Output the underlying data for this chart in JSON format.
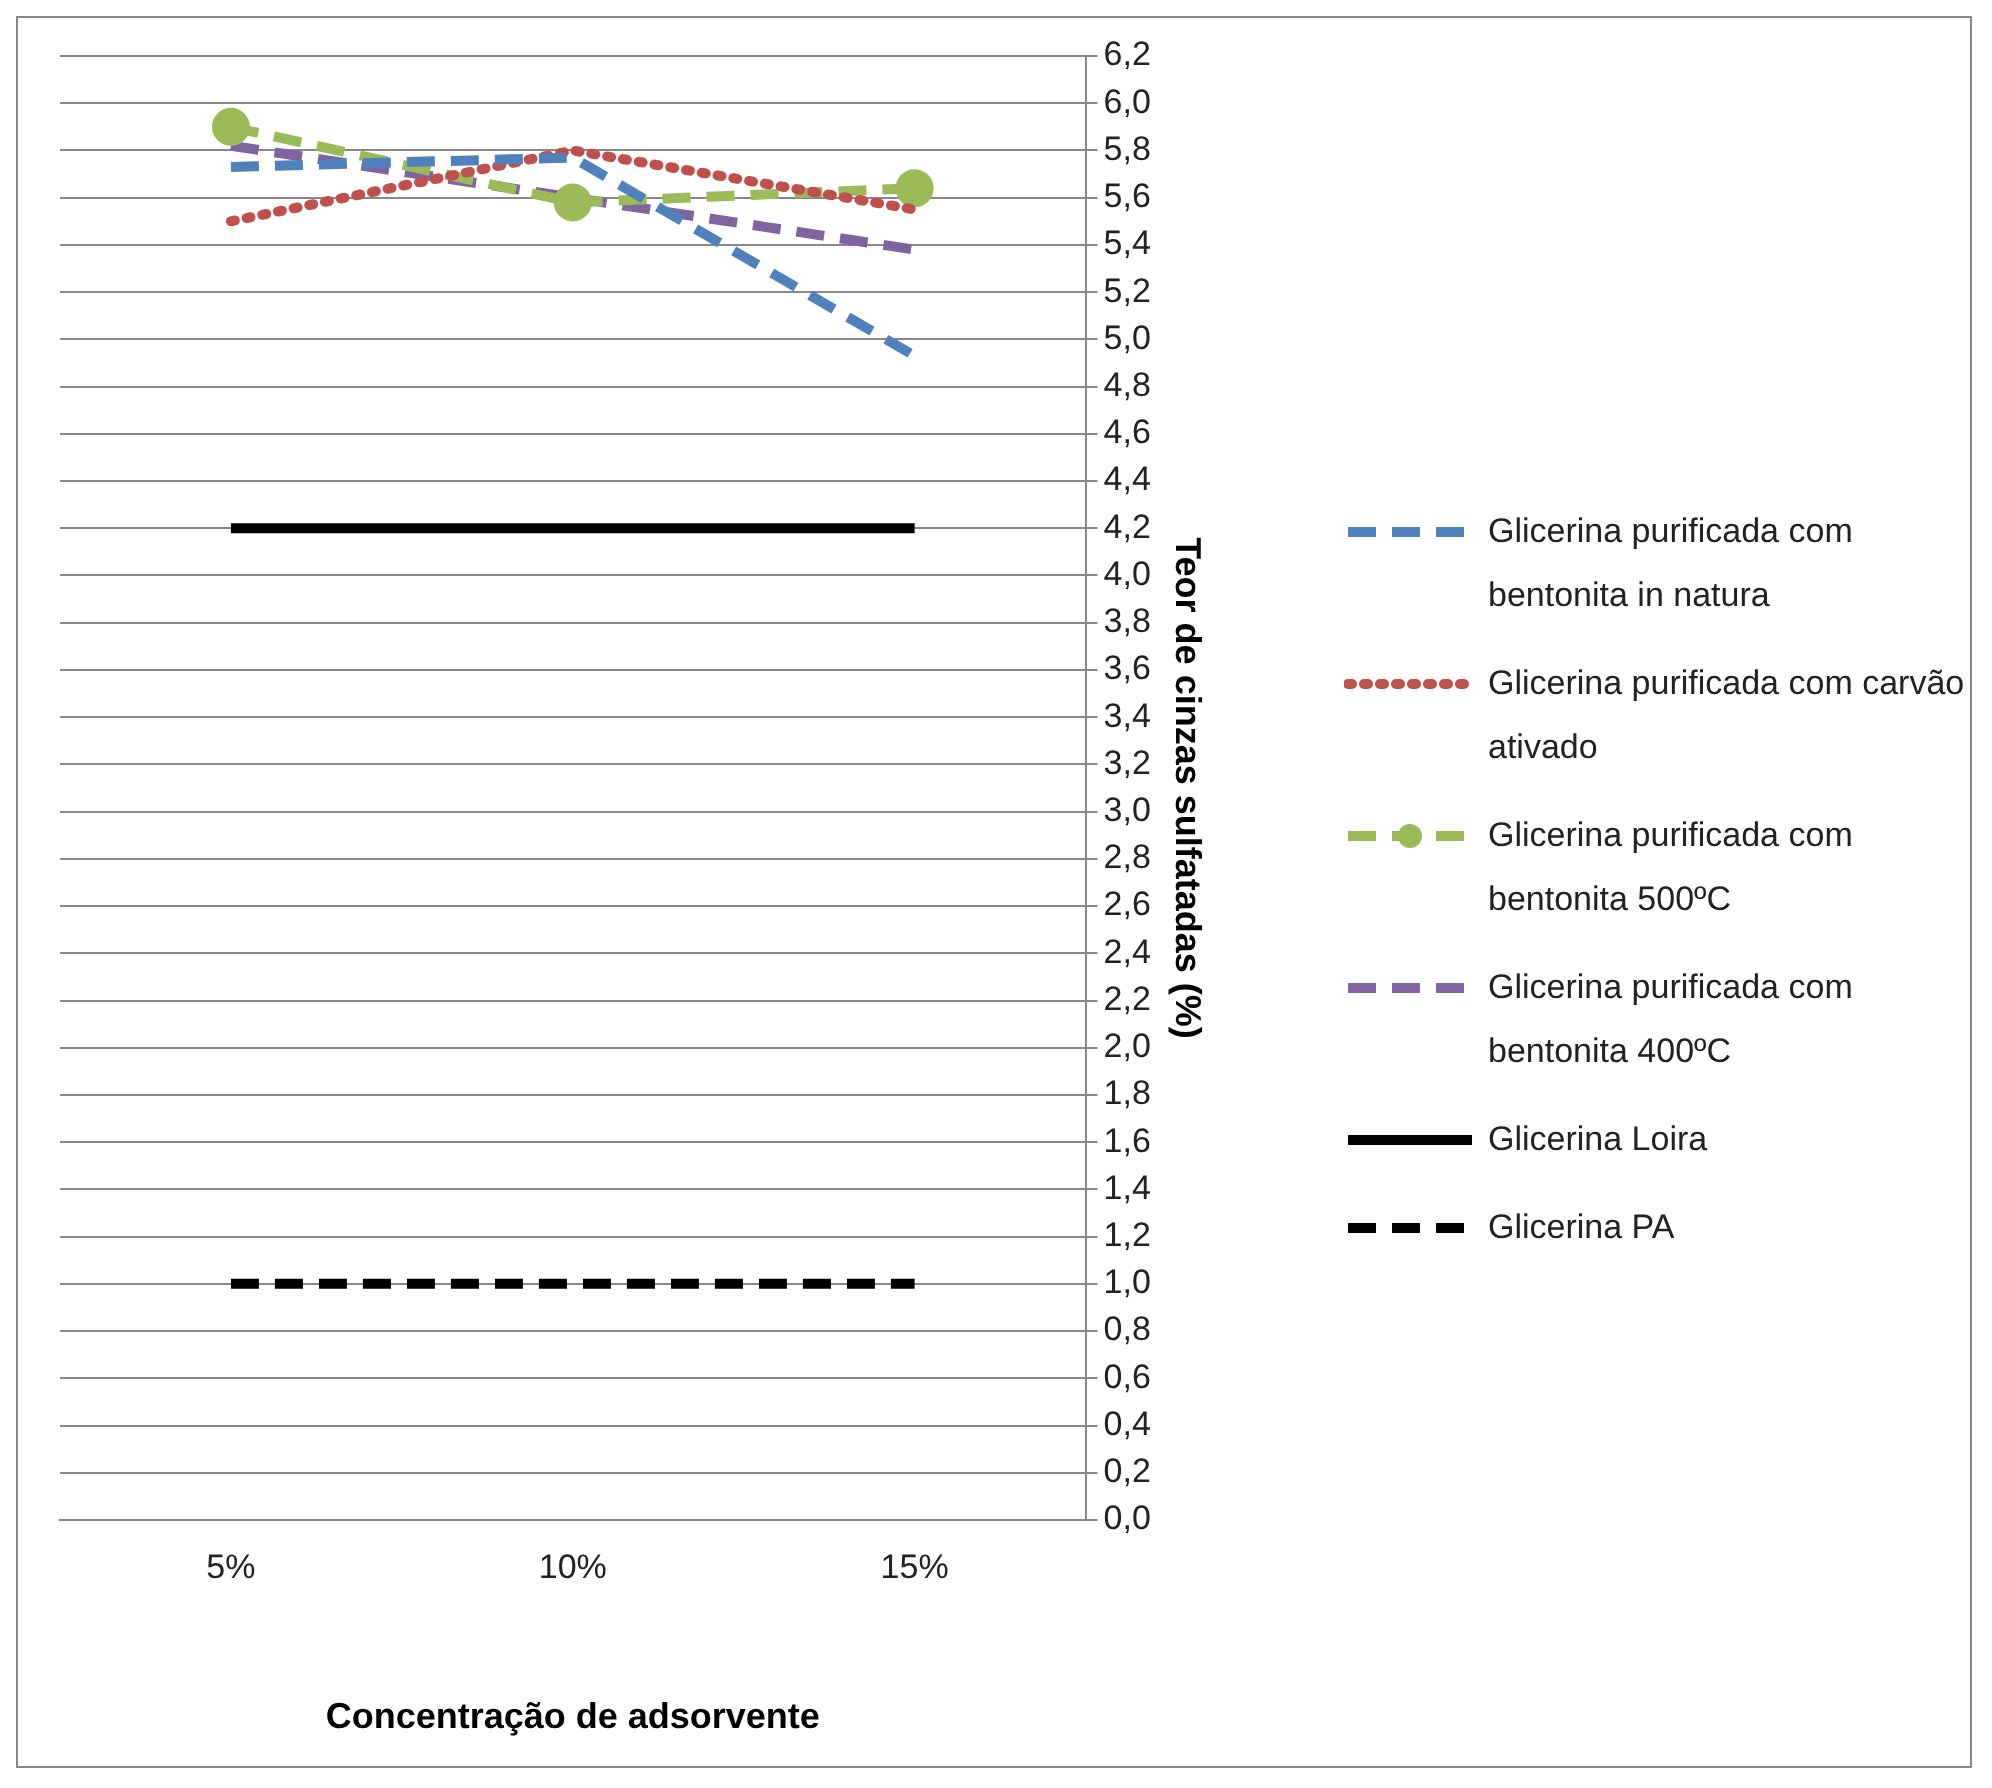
{
  "chart_data": {
    "type": "line",
    "xlabel": "Concentração de adsorvente",
    "ylabel": "Teor de cinzas sulfatadas (%)",
    "categories": [
      "5%",
      "10%",
      "15%"
    ],
    "ylim": [
      0,
      6.2
    ],
    "yticks": [
      {
        "value": 0,
        "label": "0,0"
      },
      {
        "value": 0.2,
        "label": "0,2"
      },
      {
        "value": 0.4,
        "label": "0,4"
      },
      {
        "value": 0.6,
        "label": "0,6"
      },
      {
        "value": 0.8,
        "label": "0,8"
      },
      {
        "value": 1,
        "label": "1,0"
      },
      {
        "value": 1.2,
        "label": "1,2"
      },
      {
        "value": 1.4,
        "label": "1,4"
      },
      {
        "value": 1.6,
        "label": "1,6"
      },
      {
        "value": 1.8,
        "label": "1,8"
      },
      {
        "value": 2,
        "label": "2,0"
      },
      {
        "value": 2.2,
        "label": "2,2"
      },
      {
        "value": 2.4,
        "label": "2,4"
      },
      {
        "value": 2.6,
        "label": "2,6"
      },
      {
        "value": 2.8,
        "label": "2,8"
      },
      {
        "value": 3,
        "label": "3,0"
      },
      {
        "value": 3.2,
        "label": "3,2"
      },
      {
        "value": 3.4,
        "label": "3,4"
      },
      {
        "value": 3.6,
        "label": "3,6"
      },
      {
        "value": 3.8,
        "label": "3,8"
      },
      {
        "value": 4,
        "label": "4,0"
      },
      {
        "value": 4.2,
        "label": "4,2"
      },
      {
        "value": 4.4,
        "label": "4,4"
      },
      {
        "value": 4.6,
        "label": "4,6"
      },
      {
        "value": 4.8,
        "label": "4,8"
      },
      {
        "value": 5,
        "label": "5,0"
      },
      {
        "value": 5.2,
        "label": "5,2"
      },
      {
        "value": 5.4,
        "label": "5,4"
      },
      {
        "value": 5.6,
        "label": "5,6"
      },
      {
        "value": 5.8,
        "label": "5,8"
      },
      {
        "value": 6,
        "label": "6,0"
      },
      {
        "value": 6.2,
        "label": "6,2"
      }
    ],
    "grid": "y",
    "legend": "right",
    "marker": "none",
    "series": [
      {
        "name": "Glicerina purificada com bentonita in natura",
        "color": "#4f81bd",
        "values": [
          5.73,
          5.77,
          4.93
        ],
        "line_style": "dashed"
      },
      {
        "name": "Glicerina purificada com carvão ativado",
        "color": "#c0504d",
        "values": [
          5.5,
          5.8,
          5.55
        ],
        "line_style": "dotted"
      },
      {
        "name": "Glicerina purificada com bentonita 500ºC",
        "color": "#9bbb59",
        "values": [
          5.9,
          5.58,
          5.64
        ],
        "line_style": "dashed",
        "marker": "circle"
      },
      {
        "name": "Glicerina purificada com bentonita 400ºC",
        "color": "#8064a2",
        "values": [
          5.82,
          5.6,
          5.38
        ],
        "line_style": "dashed"
      },
      {
        "name": "Glicerina Loira",
        "color": "#000000",
        "values": [
          4.2,
          4.2,
          4.2
        ],
        "line_style": "solid"
      },
      {
        "name": "Glicerina PA",
        "color": "#000000",
        "values": [
          1.0,
          1.0,
          1.0
        ],
        "line_style": "dashed"
      }
    ]
  }
}
